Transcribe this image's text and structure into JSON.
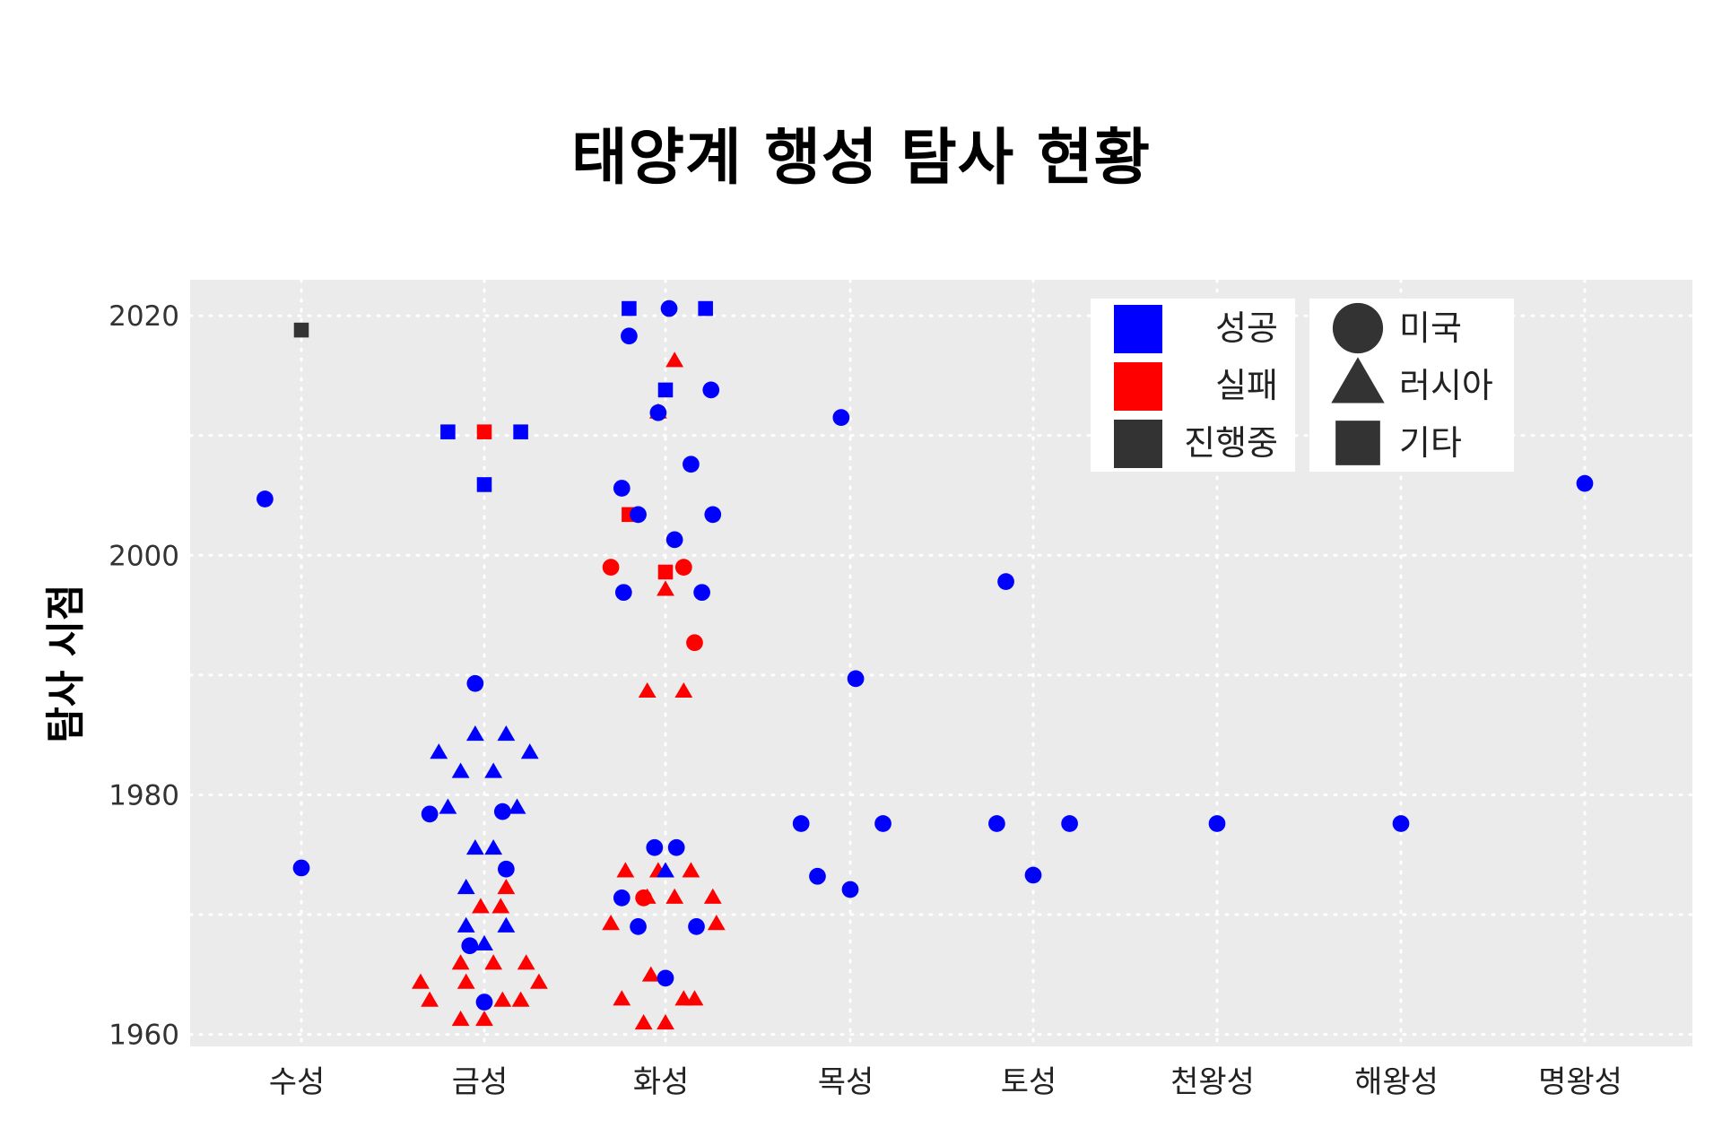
{
  "chart_data": {
    "type": "scatter",
    "title": "태양계 행성 탐사 현황",
    "xlabel": "",
    "ylabel": "탐사 시점",
    "categories": [
      "수성",
      "금성",
      "화성",
      "목성",
      "토성",
      "천왕성",
      "해왕성",
      "명왕성"
    ],
    "yticks": [
      1960,
      1980,
      2000,
      2020
    ],
    "ylim": [
      1959,
      2023
    ],
    "grid": true,
    "legend": {
      "placement": "top-right",
      "status": [
        {
          "key": "success",
          "label": "성공",
          "color": "#0000ff"
        },
        {
          "key": "fail",
          "label": "실패",
          "color": "#ff0000"
        },
        {
          "key": "ongoing",
          "label": "진행중",
          "color": "#333333"
        }
      ],
      "agency": [
        {
          "key": "us",
          "label": "미국",
          "shape": "circle"
        },
        {
          "key": "ru",
          "label": "러시아",
          "shape": "triangle"
        },
        {
          "key": "other",
          "label": "기타",
          "shape": "square"
        }
      ]
    },
    "points": [
      {
        "category": "수성",
        "x": -0.2,
        "year": 2004.7,
        "status": "success",
        "agency": "us"
      },
      {
        "category": "수성",
        "x": 0.0,
        "year": 2018.8,
        "status": "ongoing",
        "agency": "other"
      },
      {
        "category": "수성",
        "x": 0.0,
        "year": 1973.9,
        "status": "success",
        "agency": "us"
      },
      {
        "category": "금성",
        "x": -0.2,
        "year": 2010.3,
        "status": "success",
        "agency": "other"
      },
      {
        "category": "금성",
        "x": 0.0,
        "year": 2010.3,
        "status": "fail",
        "agency": "other"
      },
      {
        "category": "금성",
        "x": 0.2,
        "year": 2010.3,
        "status": "success",
        "agency": "other"
      },
      {
        "category": "금성",
        "x": 0.0,
        "year": 2005.9,
        "status": "success",
        "agency": "other"
      },
      {
        "category": "금성",
        "x": -0.05,
        "year": 1989.3,
        "status": "success",
        "agency": "us"
      },
      {
        "category": "금성",
        "x": -0.05,
        "year": 1985.0,
        "status": "success",
        "agency": "ru"
      },
      {
        "category": "금성",
        "x": 0.12,
        "year": 1985.0,
        "status": "success",
        "agency": "ru"
      },
      {
        "category": "금성",
        "x": -0.25,
        "year": 1983.5,
        "status": "success",
        "agency": "ru"
      },
      {
        "category": "금성",
        "x": 0.25,
        "year": 1983.5,
        "status": "success",
        "agency": "ru"
      },
      {
        "category": "금성",
        "x": -0.13,
        "year": 1981.9,
        "status": "success",
        "agency": "ru"
      },
      {
        "category": "금성",
        "x": 0.05,
        "year": 1981.9,
        "status": "success",
        "agency": "ru"
      },
      {
        "category": "금성",
        "x": -0.2,
        "year": 1978.9,
        "status": "success",
        "agency": "ru"
      },
      {
        "category": "금성",
        "x": 0.18,
        "year": 1978.9,
        "status": "success",
        "agency": "ru"
      },
      {
        "category": "금성",
        "x": -0.3,
        "year": 1978.4,
        "status": "success",
        "agency": "us"
      },
      {
        "category": "금성",
        "x": 0.1,
        "year": 1978.6,
        "status": "success",
        "agency": "us"
      },
      {
        "category": "금성",
        "x": -0.05,
        "year": 1975.5,
        "status": "success",
        "agency": "ru"
      },
      {
        "category": "금성",
        "x": 0.05,
        "year": 1975.5,
        "status": "success",
        "agency": "ru"
      },
      {
        "category": "금성",
        "x": 0.12,
        "year": 1973.8,
        "status": "success",
        "agency": "us"
      },
      {
        "category": "금성",
        "x": -0.1,
        "year": 1972.2,
        "status": "success",
        "agency": "ru"
      },
      {
        "category": "금성",
        "x": 0.12,
        "year": 1972.2,
        "status": "fail",
        "agency": "ru"
      },
      {
        "category": "금성",
        "x": -0.02,
        "year": 1970.6,
        "status": "fail",
        "agency": "ru"
      },
      {
        "category": "금성",
        "x": 0.09,
        "year": 1970.6,
        "status": "fail",
        "agency": "ru"
      },
      {
        "category": "금성",
        "x": -0.1,
        "year": 1969.0,
        "status": "success",
        "agency": "ru"
      },
      {
        "category": "금성",
        "x": 0.12,
        "year": 1969.0,
        "status": "success",
        "agency": "ru"
      },
      {
        "category": "금성",
        "x": -0.08,
        "year": 1967.4,
        "status": "success",
        "agency": "us"
      },
      {
        "category": "금성",
        "x": 0.0,
        "year": 1967.5,
        "status": "success",
        "agency": "ru"
      },
      {
        "category": "금성",
        "x": -0.13,
        "year": 1965.9,
        "status": "fail",
        "agency": "ru"
      },
      {
        "category": "금성",
        "x": 0.05,
        "year": 1965.9,
        "status": "fail",
        "agency": "ru"
      },
      {
        "category": "금성",
        "x": 0.23,
        "year": 1965.9,
        "status": "fail",
        "agency": "ru"
      },
      {
        "category": "금성",
        "x": -0.35,
        "year": 1964.3,
        "status": "fail",
        "agency": "ru"
      },
      {
        "category": "금성",
        "x": -0.1,
        "year": 1964.3,
        "status": "fail",
        "agency": "ru"
      },
      {
        "category": "금성",
        "x": 0.3,
        "year": 1964.3,
        "status": "fail",
        "agency": "ru"
      },
      {
        "category": "금성",
        "x": -0.3,
        "year": 1962.8,
        "status": "fail",
        "agency": "ru"
      },
      {
        "category": "금성",
        "x": 0.1,
        "year": 1962.8,
        "status": "fail",
        "agency": "ru"
      },
      {
        "category": "금성",
        "x": 0.2,
        "year": 1962.8,
        "status": "fail",
        "agency": "ru"
      },
      {
        "category": "금성",
        "x": 0.0,
        "year": 1962.7,
        "status": "success",
        "agency": "us"
      },
      {
        "category": "금성",
        "x": -0.13,
        "year": 1961.2,
        "status": "fail",
        "agency": "ru"
      },
      {
        "category": "금성",
        "x": 0.0,
        "year": 1961.2,
        "status": "fail",
        "agency": "ru"
      },
      {
        "category": "화성",
        "x": -0.2,
        "year": 2020.6,
        "status": "success",
        "agency": "other"
      },
      {
        "category": "화성",
        "x": 0.02,
        "year": 2020.6,
        "status": "success",
        "agency": "us"
      },
      {
        "category": "화성",
        "x": 0.22,
        "year": 2020.6,
        "status": "success",
        "agency": "other"
      },
      {
        "category": "화성",
        "x": -0.2,
        "year": 2018.3,
        "status": "success",
        "agency": "us"
      },
      {
        "category": "화성",
        "x": 0.05,
        "year": 2016.2,
        "status": "fail",
        "agency": "ru"
      },
      {
        "category": "화성",
        "x": 0.0,
        "year": 2013.8,
        "status": "success",
        "agency": "other"
      },
      {
        "category": "화성",
        "x": 0.25,
        "year": 2013.8,
        "status": "success",
        "agency": "us"
      },
      {
        "category": "화성",
        "x": -0.04,
        "year": 2011.9,
        "status": "fail",
        "agency": "ru"
      },
      {
        "category": "화성",
        "x": -0.04,
        "year": 2011.9,
        "status": "success",
        "agency": "us"
      },
      {
        "category": "화성",
        "x": 0.14,
        "year": 2007.6,
        "status": "success",
        "agency": "us"
      },
      {
        "category": "화성",
        "x": -0.24,
        "year": 2005.6,
        "status": "success",
        "agency": "us"
      },
      {
        "category": "화성",
        "x": -0.2,
        "year": 2003.4,
        "status": "fail",
        "agency": "other"
      },
      {
        "category": "화성",
        "x": -0.15,
        "year": 2003.4,
        "status": "success",
        "agency": "us"
      },
      {
        "category": "화성",
        "x": 0.26,
        "year": 2003.4,
        "status": "success",
        "agency": "us"
      },
      {
        "category": "화성",
        "x": 0.05,
        "year": 2001.3,
        "status": "success",
        "agency": "us"
      },
      {
        "category": "화성",
        "x": -0.3,
        "year": 1999.0,
        "status": "fail",
        "agency": "us"
      },
      {
        "category": "화성",
        "x": 0.0,
        "year": 1998.6,
        "status": "fail",
        "agency": "other"
      },
      {
        "category": "화성",
        "x": 0.1,
        "year": 1999.0,
        "status": "fail",
        "agency": "us"
      },
      {
        "category": "화성",
        "x": -0.23,
        "year": 1996.9,
        "status": "success",
        "agency": "us"
      },
      {
        "category": "화성",
        "x": 0.0,
        "year": 1997.1,
        "status": "fail",
        "agency": "ru"
      },
      {
        "category": "화성",
        "x": 0.2,
        "year": 1996.9,
        "status": "success",
        "agency": "us"
      },
      {
        "category": "화성",
        "x": 0.16,
        "year": 1992.7,
        "status": "fail",
        "agency": "us"
      },
      {
        "category": "화성",
        "x": -0.1,
        "year": 1988.6,
        "status": "fail",
        "agency": "ru"
      },
      {
        "category": "화성",
        "x": 0.1,
        "year": 1988.6,
        "status": "fail",
        "agency": "ru"
      },
      {
        "category": "화성",
        "x": -0.06,
        "year": 1975.6,
        "status": "success",
        "agency": "us"
      },
      {
        "category": "화성",
        "x": 0.06,
        "year": 1975.6,
        "status": "success",
        "agency": "us"
      },
      {
        "category": "화성",
        "x": -0.22,
        "year": 1973.6,
        "status": "fail",
        "agency": "ru"
      },
      {
        "category": "화성",
        "x": -0.04,
        "year": 1973.6,
        "status": "fail",
        "agency": "ru"
      },
      {
        "category": "화성",
        "x": 0.0,
        "year": 1973.6,
        "status": "success",
        "agency": "ru"
      },
      {
        "category": "화성",
        "x": 0.14,
        "year": 1973.6,
        "status": "fail",
        "agency": "ru"
      },
      {
        "category": "화성",
        "x": -0.24,
        "year": 1971.4,
        "status": "success",
        "agency": "us"
      },
      {
        "category": "화성",
        "x": -0.12,
        "year": 1971.4,
        "status": "fail",
        "agency": "us"
      },
      {
        "category": "화성",
        "x": -0.1,
        "year": 1971.4,
        "status": "fail",
        "agency": "ru"
      },
      {
        "category": "화성",
        "x": 0.05,
        "year": 1971.4,
        "status": "fail",
        "agency": "ru"
      },
      {
        "category": "화성",
        "x": 0.26,
        "year": 1971.4,
        "status": "fail",
        "agency": "ru"
      },
      {
        "category": "화성",
        "x": -0.3,
        "year": 1969.2,
        "status": "fail",
        "agency": "ru"
      },
      {
        "category": "화성",
        "x": -0.15,
        "year": 1969.0,
        "status": "success",
        "agency": "us"
      },
      {
        "category": "화성",
        "x": 0.17,
        "year": 1969.0,
        "status": "success",
        "agency": "us"
      },
      {
        "category": "화성",
        "x": 0.28,
        "year": 1969.2,
        "status": "fail",
        "agency": "ru"
      },
      {
        "category": "화성",
        "x": -0.08,
        "year": 1964.9,
        "status": "fail",
        "agency": "ru"
      },
      {
        "category": "화성",
        "x": 0.0,
        "year": 1964.7,
        "status": "success",
        "agency": "us"
      },
      {
        "category": "화성",
        "x": -0.24,
        "year": 1962.9,
        "status": "fail",
        "agency": "ru"
      },
      {
        "category": "화성",
        "x": 0.1,
        "year": 1962.9,
        "status": "fail",
        "agency": "ru"
      },
      {
        "category": "화성",
        "x": 0.16,
        "year": 1962.9,
        "status": "fail",
        "agency": "ru"
      },
      {
        "category": "화성",
        "x": -0.12,
        "year": 1960.9,
        "status": "fail",
        "agency": "ru"
      },
      {
        "category": "화성",
        "x": 0.0,
        "year": 1960.9,
        "status": "fail",
        "agency": "ru"
      },
      {
        "category": "목성",
        "x": -0.05,
        "year": 2011.5,
        "status": "success",
        "agency": "us"
      },
      {
        "category": "목성",
        "x": 0.03,
        "year": 1989.7,
        "status": "success",
        "agency": "us"
      },
      {
        "category": "목성",
        "x": -0.27,
        "year": 1977.6,
        "status": "success",
        "agency": "us"
      },
      {
        "category": "목성",
        "x": 0.18,
        "year": 1977.6,
        "status": "success",
        "agency": "us"
      },
      {
        "category": "목성",
        "x": -0.18,
        "year": 1973.2,
        "status": "success",
        "agency": "us"
      },
      {
        "category": "목성",
        "x": 0.0,
        "year": 1972.1,
        "status": "success",
        "agency": "us"
      },
      {
        "category": "토성",
        "x": -0.15,
        "year": 1997.8,
        "status": "success",
        "agency": "us"
      },
      {
        "category": "토성",
        "x": -0.2,
        "year": 1977.6,
        "status": "success",
        "agency": "us"
      },
      {
        "category": "토성",
        "x": 0.2,
        "year": 1977.6,
        "status": "success",
        "agency": "us"
      },
      {
        "category": "토성",
        "x": 0.0,
        "year": 1973.3,
        "status": "success",
        "agency": "us"
      },
      {
        "category": "천왕성",
        "x": 0.0,
        "year": 1977.6,
        "status": "success",
        "agency": "us"
      },
      {
        "category": "해왕성",
        "x": 0.0,
        "year": 1977.6,
        "status": "success",
        "agency": "us"
      },
      {
        "category": "명왕성",
        "x": 0.0,
        "year": 2006.0,
        "status": "success",
        "agency": "us"
      }
    ]
  }
}
